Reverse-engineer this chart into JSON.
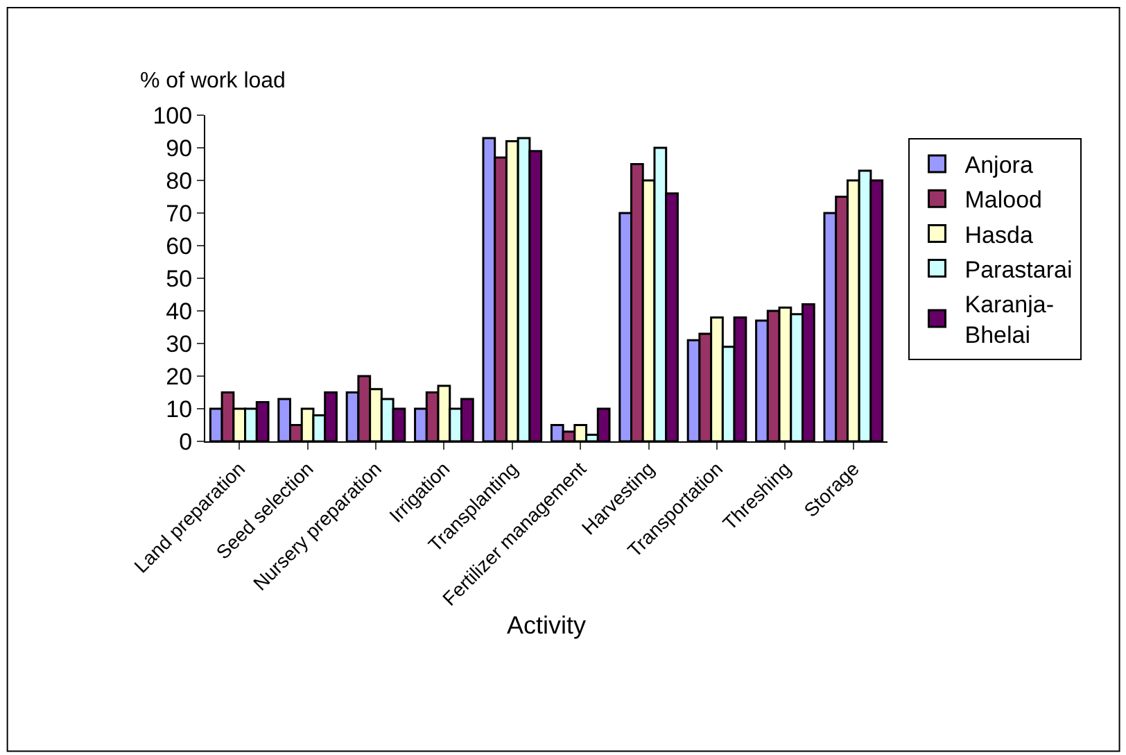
{
  "chart_data": {
    "type": "bar",
    "ylabel": "% of work load",
    "xlabel": "Activity",
    "categories": [
      "Land preparation",
      "Seed selection",
      "Nursery preparation",
      "Irrigation",
      "Transplanting",
      "Fertilizer management",
      "Harvesting",
      "Transportation",
      "Threshing",
      "Storage"
    ],
    "series": [
      {
        "name": "Anjora",
        "color": "#9999ff",
        "values": [
          10,
          13,
          15,
          10,
          93,
          5,
          70,
          31,
          37,
          70
        ]
      },
      {
        "name": "Malood",
        "color": "#993366",
        "values": [
          15,
          5,
          20,
          15,
          87,
          3,
          85,
          33,
          40,
          75
        ]
      },
      {
        "name": "Hasda",
        "color": "#ffffcc",
        "values": [
          10,
          10,
          16,
          17,
          92,
          5,
          80,
          38,
          41,
          80
        ]
      },
      {
        "name": "Parastarai",
        "color": "#ccffff",
        "values": [
          10,
          8,
          13,
          10,
          93,
          2,
          90,
          29,
          39,
          83
        ]
      },
      {
        "name": "Karanja-\nBhelai",
        "color": "#660066",
        "values": [
          12,
          15,
          10,
          13,
          89,
          10,
          76,
          38,
          42,
          80
        ]
      }
    ],
    "ylim": [
      0,
      100
    ],
    "yticks": [
      0,
      10,
      20,
      30,
      40,
      50,
      60,
      70,
      80,
      90,
      100
    ],
    "legend": "right"
  }
}
